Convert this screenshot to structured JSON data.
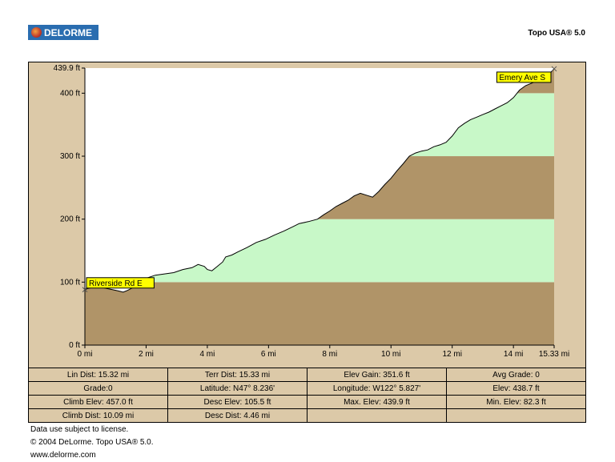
{
  "header": {
    "logo_text": "DELORME",
    "app_title": "Topo USA® 5.0"
  },
  "chart_data": {
    "type": "area",
    "title": "",
    "xlabel": "",
    "ylabel": "",
    "xlim": [
      0,
      15.33
    ],
    "ylim": [
      0,
      439.9
    ],
    "x_ticks": [
      {
        "v": 0,
        "label": "0 mi"
      },
      {
        "v": 2,
        "label": "2 mi"
      },
      {
        "v": 4,
        "label": "4 mi"
      },
      {
        "v": 6,
        "label": "6 mi"
      },
      {
        "v": 8,
        "label": "8 mi"
      },
      {
        "v": 10,
        "label": "10 mi"
      },
      {
        "v": 12,
        "label": "12 mi"
      },
      {
        "v": 14,
        "label": "14 mi"
      },
      {
        "v": 15.33,
        "label": "15.33 mi"
      }
    ],
    "y_ticks": [
      {
        "v": 0,
        "label": "0 ft"
      },
      {
        "v": 100,
        "label": "100 ft"
      },
      {
        "v": 200,
        "label": "200 ft"
      },
      {
        "v": 300,
        "label": "300 ft"
      },
      {
        "v": 400,
        "label": "400 ft"
      },
      {
        "v": 439.9,
        "label": "439.9 ft"
      }
    ],
    "bands": [
      {
        "from": 0,
        "to": 100,
        "color": "#b09468"
      },
      {
        "from": 100,
        "to": 200,
        "color": "#c8f8c8"
      },
      {
        "from": 200,
        "to": 300,
        "color": "#b09468"
      },
      {
        "from": 300,
        "to": 400,
        "color": "#c8f8c8"
      },
      {
        "from": 400,
        "to": 439.9,
        "color": "#b09468"
      }
    ],
    "series": [
      {
        "x": [
          0,
          0.1,
          0.3,
          0.6,
          0.9,
          1.1,
          1.25,
          1.4,
          1.6,
          1.8,
          2.0,
          2.3,
          2.6,
          2.9,
          3.2,
          3.5,
          3.7,
          3.9,
          4.0,
          4.15,
          4.3,
          4.5,
          4.6,
          4.8,
          5.0,
          5.3,
          5.6,
          5.9,
          6.2,
          6.5,
          6.8,
          7.0,
          7.3,
          7.6,
          7.8,
          8.0,
          8.2,
          8.4,
          8.6,
          8.8,
          9.0,
          9.2,
          9.4,
          9.6,
          9.8,
          10.0,
          10.2,
          10.4,
          10.6,
          10.8,
          11.0,
          11.2,
          11.4,
          11.6,
          11.8,
          12.0,
          12.2,
          12.4,
          12.6,
          12.8,
          13.0,
          13.2,
          13.4,
          13.6,
          13.8,
          14.0,
          14.2,
          14.4,
          14.6,
          14.8,
          15.0,
          15.2,
          15.33
        ],
        "y": [
          88,
          90,
          92,
          91,
          88,
          86,
          84,
          87,
          92,
          98,
          106,
          111,
          113,
          115,
          120,
          123,
          128,
          125,
          120,
          118,
          124,
          132,
          140,
          143,
          148,
          155,
          163,
          168,
          175,
          181,
          188,
          193,
          196,
          200,
          207,
          213,
          220,
          225,
          230,
          237,
          241,
          238,
          235,
          244,
          255,
          265,
          277,
          288,
          300,
          305,
          308,
          310,
          315,
          318,
          322,
          332,
          345,
          352,
          358,
          362,
          366,
          370,
          375,
          380,
          385,
          393,
          405,
          412,
          416,
          420,
          425,
          432,
          438.7
        ]
      }
    ],
    "annotations": [
      {
        "x": 0,
        "y": 88,
        "text": "Riverside Rd E"
      },
      {
        "x": 15.33,
        "y": 438.7,
        "text": "Emery Ave S"
      }
    ],
    "colors": {
      "panel_bg": "#dcc9a8",
      "plot_bg": "#ffffff",
      "line": "#000000",
      "label_bg": "#ffff00"
    }
  },
  "stats": {
    "rows": [
      [
        "Lin Dist: 15.32 mi",
        "Terr Dist: 15.33 mi",
        "Elev Gain: 351.6 ft",
        "Avg Grade: 0"
      ],
      [
        "Grade:0",
        "Latitude: N47° 8.236'",
        "Longitude: W122° 5.827'",
        "Elev: 438.7 ft"
      ],
      [
        "Climb Elev: 457.0 ft",
        "Desc Elev: 105.5 ft",
        "Max. Elev: 439.9 ft",
        "Min. Elev: 82.3 ft"
      ],
      [
        "Climb Dist: 10.09 mi",
        "Desc Dist: 4.46 mi",
        "",
        ""
      ]
    ]
  },
  "footer": {
    "line1": "Data use subject to license.",
    "line2": "© 2004 DeLorme. Topo USA® 5.0.",
    "line3": "www.delorme.com"
  }
}
